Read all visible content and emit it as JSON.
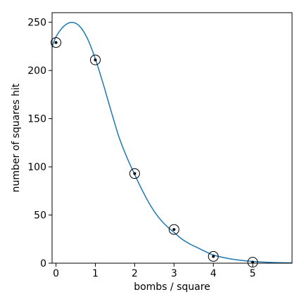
{
  "chart_data": {
    "type": "scatter",
    "xlabel": "bombs / square",
    "ylabel": "number of squares hit",
    "xlim": [
      -0.1,
      6.0
    ],
    "ylim": [
      0,
      260
    ],
    "xticks": [
      0,
      1,
      2,
      3,
      4,
      5
    ],
    "yticks": [
      0,
      50,
      100,
      150,
      200,
      250
    ],
    "grid": false,
    "series": [
      {
        "kind": "points",
        "x": [
          0,
          1,
          2,
          3,
          4,
          5
        ],
        "y": [
          229,
          211,
          93,
          35,
          7,
          1
        ],
        "marker": "circled-dot"
      },
      {
        "kind": "fitted-curve",
        "x": [
          -0.1,
          0.0,
          0.2,
          0.4,
          0.6,
          0.8,
          1.0,
          1.2,
          1.4,
          1.6,
          1.8,
          2.0,
          2.2,
          2.4,
          2.6,
          2.8,
          3.0,
          3.2,
          3.4,
          3.6,
          3.8,
          4.0,
          4.3,
          4.6,
          5.0,
          5.5,
          6.0
        ],
        "y": [
          224,
          235,
          246,
          250,
          246,
          233,
          212,
          186,
          158,
          131,
          110,
          92,
          75,
          60,
          48,
          39,
          32,
          25,
          20,
          16,
          12,
          8.5,
          5.5,
          3.5,
          1.8,
          0.7,
          0.3
        ],
        "color": "#1f77b4"
      }
    ]
  }
}
